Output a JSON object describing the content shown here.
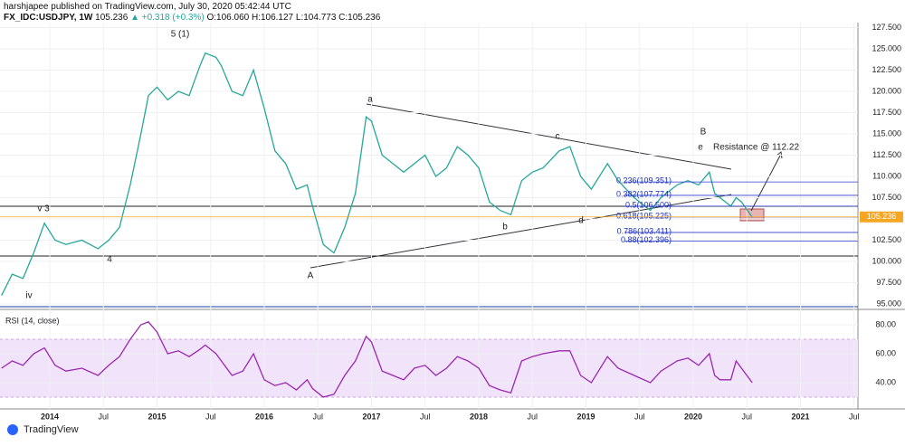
{
  "header": {
    "publisher": "harshjapee published on TradingView.com, July 30, 2020 05:42:44 UTC",
    "symbol": "FX_IDC:USDJPY, 1W",
    "last": "105.236",
    "change": "▲ +0.318 (+0.3%)",
    "ohlc": "O:106.060 H:106.127 L:104.773 C:105.236"
  },
  "footer": {
    "brand": "TradingView"
  },
  "chart_data": [
    {
      "type": "line",
      "last_price": 105.236,
      "xlim": [
        2013.536,
        2021.536
      ],
      "xticks": [
        {
          "value": 2014,
          "label": "2014"
        },
        {
          "value": 2014.5,
          "label": "Jul"
        },
        {
          "value": 2015,
          "label": "2015"
        },
        {
          "value": 2015.5,
          "label": "Jul"
        },
        {
          "value": 2016,
          "label": "2016"
        },
        {
          "value": 2016.5,
          "label": "Jul"
        },
        {
          "value": 2017,
          "label": "2017"
        },
        {
          "value": 2017.5,
          "label": "Jul"
        },
        {
          "value": 2018,
          "label": "2018"
        },
        {
          "value": 2018.5,
          "label": "Jul"
        },
        {
          "value": 2019,
          "label": "2019"
        },
        {
          "value": 2019.5,
          "label": "Jul"
        },
        {
          "value": 2020,
          "label": "2020"
        },
        {
          "value": 2020.5,
          "label": "Jul"
        },
        {
          "value": 2021,
          "label": "2021"
        },
        {
          "value": 2021.5,
          "label": "Jul"
        }
      ],
      "ylim": [
        94.36,
        128.09
      ],
      "yticks": [
        {
          "value": 95,
          "label": "95.000"
        },
        {
          "value": 97.5,
          "label": "97.500"
        },
        {
          "value": 100,
          "label": "100.000"
        },
        {
          "value": 102.5,
          "label": "102.500"
        },
        {
          "value": 105,
          "label": "105.000"
        },
        {
          "value": 107.5,
          "label": "107.500"
        },
        {
          "value": 110,
          "label": "110.000"
        },
        {
          "value": 112.5,
          "label": "112.500"
        },
        {
          "value": 115,
          "label": "115.000"
        },
        {
          "value": 117.5,
          "label": "117.500"
        },
        {
          "value": 120,
          "label": "120.000"
        },
        {
          "value": 122.5,
          "label": "122.500"
        },
        {
          "value": 125,
          "label": "125.000"
        },
        {
          "value": 127.5,
          "label": "127.500"
        }
      ],
      "x": [
        2013.55,
        2013.65,
        2013.75,
        2013.85,
        2013.95,
        2014.05,
        2014.15,
        2014.3,
        2014.45,
        2014.55,
        2014.65,
        2014.75,
        2014.85,
        2014.92,
        2015.0,
        2015.1,
        2015.2,
        2015.3,
        2015.4,
        2015.45,
        2015.55,
        2015.6,
        2015.7,
        2015.8,
        2015.9,
        2016.0,
        2016.1,
        2016.2,
        2016.3,
        2016.4,
        2016.45,
        2016.55,
        2016.65,
        2016.75,
        2016.85,
        2016.95,
        2017.0,
        2017.1,
        2017.2,
        2017.3,
        2017.4,
        2017.5,
        2017.6,
        2017.7,
        2017.8,
        2017.9,
        2018.0,
        2018.1,
        2018.2,
        2018.3,
        2018.4,
        2018.5,
        2018.6,
        2018.75,
        2018.85,
        2018.95,
        2019.05,
        2019.2,
        2019.3,
        2019.45,
        2019.6,
        2019.7,
        2019.85,
        2019.95,
        2020.05,
        2020.15,
        2020.2,
        2020.25,
        2020.35,
        2020.4,
        2020.45,
        2020.55
      ],
      "series": [
        {
          "color": "#26a69a",
          "values": [
            96,
            98.5,
            98,
            101,
            104.5,
            102.5,
            102,
            102.5,
            101.5,
            102.5,
            104,
            109,
            115,
            119.5,
            120.5,
            119,
            120,
            119.5,
            123,
            124.5,
            124,
            123,
            120,
            119.5,
            122.5,
            118,
            113,
            111.5,
            108.5,
            109,
            106.5,
            102,
            101,
            104,
            108,
            117,
            116.5,
            112.5,
            111.5,
            110.5,
            111.5,
            112.5,
            110,
            111,
            113.5,
            112.5,
            111,
            107,
            106,
            105.5,
            109.5,
            110.5,
            111,
            113,
            113.5,
            110,
            108.5,
            111.5,
            109.5,
            107.5,
            106,
            107.5,
            109,
            109.5,
            109,
            110.5,
            108,
            107.5,
            106.5,
            107.5,
            107,
            105.2
          ]
        }
      ],
      "fib_levels": [
        {
          "label": "0.236(109.351)",
          "value": 109.351
        },
        {
          "label": "0.382(107.774)",
          "value": 107.774
        },
        {
          "label": "0.5(106.500)",
          "value": 106.5
        },
        {
          "label": "0.618(105.225)",
          "value": 105.225
        },
        {
          "label": "0.786(103.411)",
          "value": 103.411
        },
        {
          "label": "0.88(102.396)",
          "value": 102.396
        }
      ],
      "annotations": [
        "iv",
        "v 3",
        "4",
        "5 (1)",
        "A",
        "a",
        "b",
        "c",
        "d",
        "e",
        "B",
        "Resistance @ 112.22"
      ]
    },
    {
      "type": "line",
      "title": "RSI (14, close)",
      "ylim": [
        22.5,
        90
      ],
      "band": [
        30,
        70
      ],
      "yticks": [
        {
          "value": 40,
          "label": "40.00"
        },
        {
          "value": 60,
          "label": "60.00"
        },
        {
          "value": 80,
          "label": "80.00"
        }
      ],
      "series": [
        {
          "color": "#9c27b0",
          "values": [
            50,
            55,
            52,
            60,
            64,
            52,
            48,
            50,
            45,
            52,
            58,
            70,
            80,
            82,
            75,
            60,
            62,
            58,
            63,
            66,
            60,
            55,
            45,
            48,
            60,
            42,
            38,
            40,
            35,
            42,
            36,
            30,
            32,
            45,
            55,
            72,
            68,
            48,
            45,
            42,
            50,
            52,
            45,
            50,
            58,
            55,
            50,
            38,
            35,
            33,
            55,
            58,
            60,
            62,
            62,
            45,
            40,
            58,
            50,
            45,
            40,
            48,
            55,
            57,
            52,
            60,
            45,
            42,
            42,
            55,
            50,
            40
          ]
        }
      ]
    }
  ]
}
